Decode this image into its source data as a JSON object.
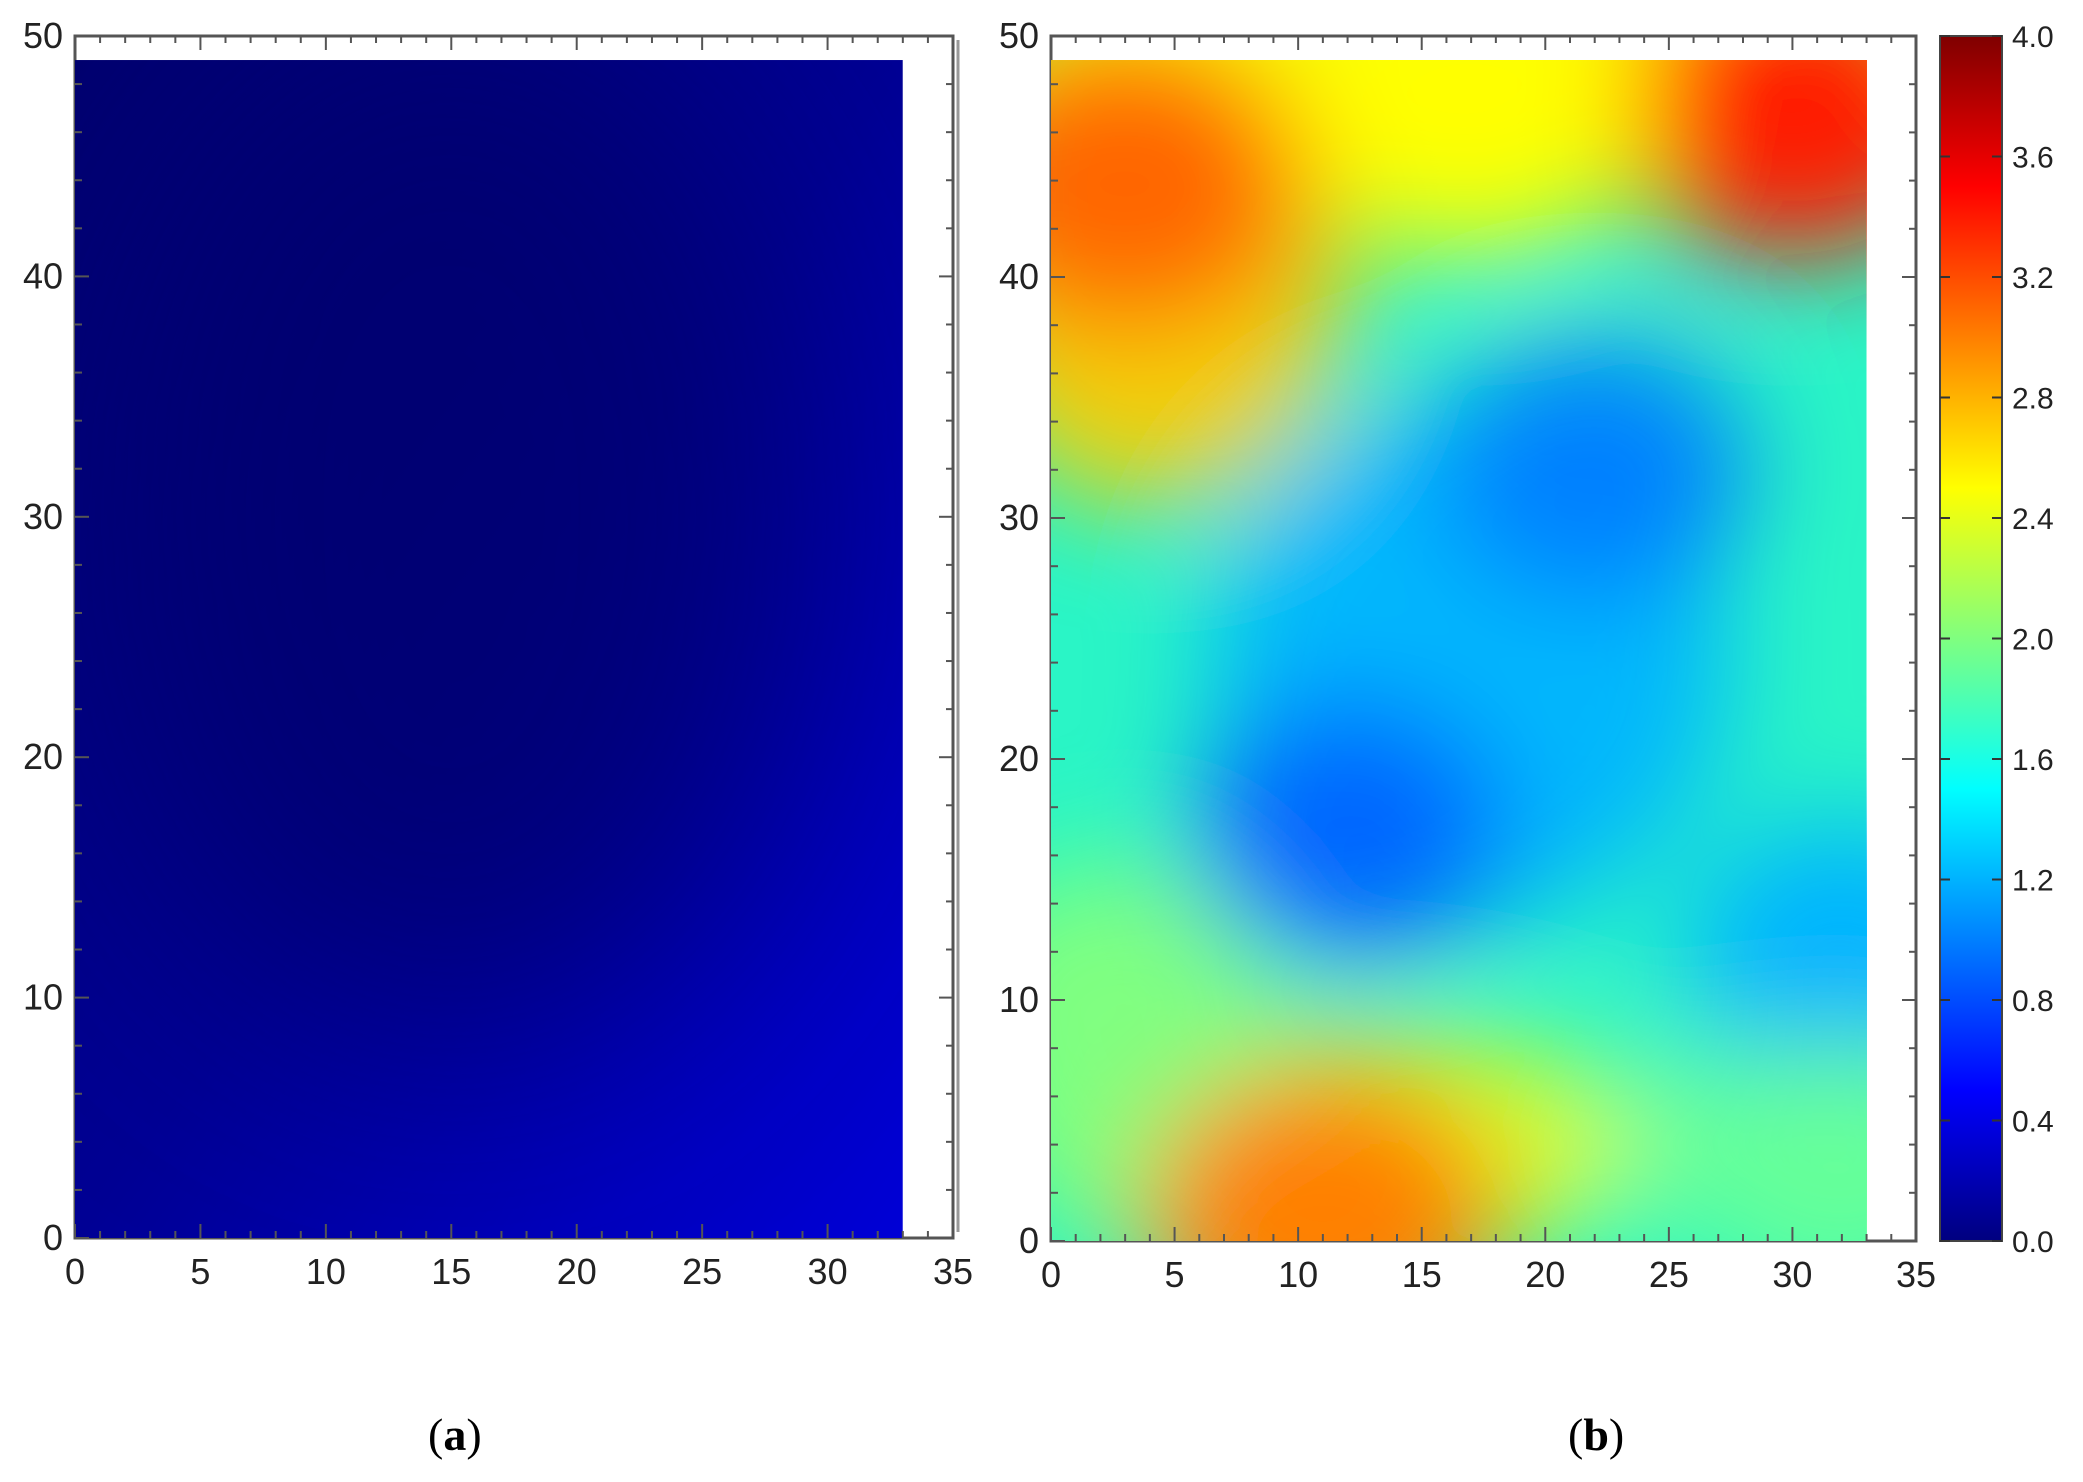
{
  "chart_data": [
    {
      "type": "heatmap",
      "panel_label": "a",
      "xlim": [
        0,
        35
      ],
      "ylim": [
        0,
        50
      ],
      "x_ticks": [
        "0",
        "5",
        "10",
        "15",
        "20",
        "25",
        "30",
        "35"
      ],
      "y_ticks": [
        "0",
        "10",
        "20",
        "30",
        "40",
        "50"
      ],
      "data_extent": {
        "x": [
          0,
          33
        ],
        "y": [
          0,
          49
        ]
      },
      "value_range_approx": [
        0.05,
        0.35
      ],
      "colormap": "jet"
    },
    {
      "type": "heatmap",
      "panel_label": "b",
      "xlim": [
        0,
        35
      ],
      "ylim": [
        0,
        50
      ],
      "x_ticks": [
        "0",
        "5",
        "10",
        "15",
        "20",
        "25",
        "30",
        "35"
      ],
      "y_ticks": [
        "0",
        "10",
        "20",
        "30",
        "40",
        "50"
      ],
      "data_extent": {
        "x": [
          0,
          33
        ],
        "y": [
          0,
          49
        ]
      },
      "colormap": "jet",
      "colorbar": {
        "range": [
          0.0,
          4.0
        ],
        "ticks": [
          "0.0",
          "0.4",
          "0.8",
          "1.2",
          "1.6",
          "2.0",
          "2.4",
          "2.8",
          "3.2",
          "3.6",
          "4.0"
        ]
      },
      "features": [
        {
          "x": 3,
          "y": 44,
          "value": 3.1
        },
        {
          "x": 30,
          "y": 47,
          "value": 3.4
        },
        {
          "x": 11,
          "y": 1,
          "value": 3.0
        },
        {
          "x": 12,
          "y": 17,
          "value": 0.9
        },
        {
          "x": 22,
          "y": 32,
          "value": 1.0
        },
        {
          "x": 32,
          "y": 12,
          "value": 1.2
        },
        {
          "x": 17,
          "y": 47,
          "value": 2.5
        },
        {
          "x": 2,
          "y": 10,
          "value": 2.0
        },
        {
          "x": 32,
          "y": 3,
          "value": 1.9
        }
      ]
    }
  ],
  "labels": {
    "a": "a",
    "b": "b",
    "paren_open": "(",
    "paren_close": ")"
  }
}
